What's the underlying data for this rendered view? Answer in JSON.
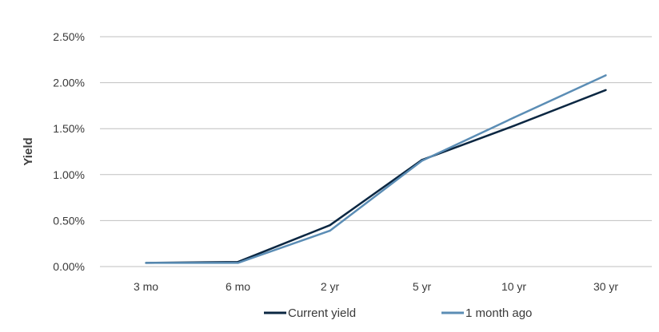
{
  "chart_data": {
    "type": "line",
    "title": "",
    "xlabel": "",
    "ylabel": "Yield",
    "categories": [
      "3 mo",
      "6 mo",
      "2 yr",
      "5 yr",
      "10 yr",
      "30 yr"
    ],
    "ylim": [
      0,
      2.5
    ],
    "yticks": [
      0,
      0.5,
      1.0,
      1.5,
      2.0,
      2.5
    ],
    "ytick_labels": [
      "0.00%",
      "0.50%",
      "1.00%",
      "1.50%",
      "2.00%",
      "2.50%"
    ],
    "grid": true,
    "legend_position": "bottom",
    "series": [
      {
        "name": "Current yield",
        "color": "#0b2742",
        "values": [
          0.04,
          0.05,
          0.45,
          1.16,
          1.53,
          1.92
        ]
      },
      {
        "name": "1 month ago",
        "color": "#5b8db5",
        "values": [
          0.04,
          0.04,
          0.39,
          1.15,
          1.62,
          2.08
        ]
      }
    ]
  }
}
